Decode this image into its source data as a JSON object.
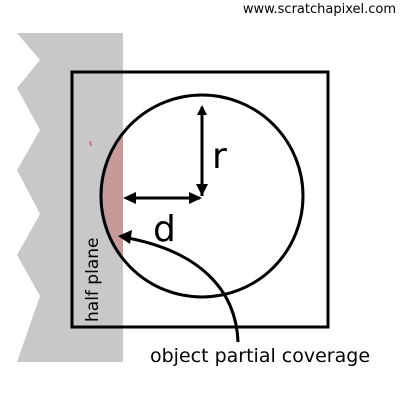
{
  "watermark": "www.scratchapixel.com",
  "labels": {
    "radius": "r",
    "distance": "d",
    "half_plane": "half plane",
    "coverage": "object partial coverage"
  },
  "colors": {
    "half_plane_fill": "#c8c8c8",
    "coverage_fill": "#c79a9a",
    "stroke": "#000000",
    "background": "#ffffff"
  }
}
